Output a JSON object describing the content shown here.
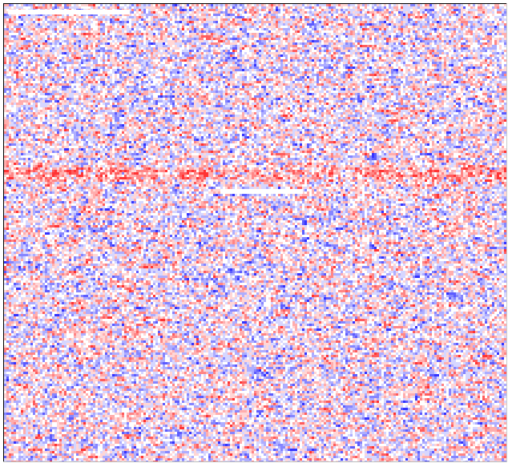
{
  "colormap": {
    "low": "#0000ff",
    "mid": "#ffffff",
    "high": "#ff0000"
  }
}
